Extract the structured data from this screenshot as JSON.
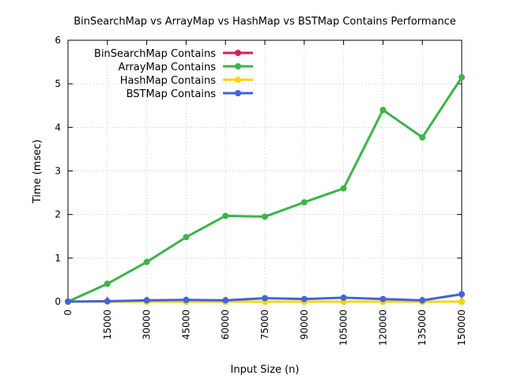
{
  "chart_data": {
    "type": "line",
    "title": "BinSearchMap vs ArrayMap vs HashMap vs BSTMap Contains Performance",
    "xlabel": "Input Size (n)",
    "ylabel": "Time (msec)",
    "x": [
      0,
      15000,
      30000,
      45000,
      60000,
      75000,
      90000,
      105000,
      120000,
      135000,
      150000
    ],
    "x_tick_labels": [
      "0",
      "15000",
      "30000",
      "45000",
      "60000",
      "75000",
      "90000",
      "105000",
      "120000",
      "135000",
      "150000"
    ],
    "y_ticks": [
      0,
      1,
      2,
      3,
      4,
      5,
      6
    ],
    "y_tick_labels": [
      "0",
      "1",
      "2",
      "3",
      "4",
      "5",
      "6"
    ],
    "xlim": [
      0,
      150000
    ],
    "ylim": [
      0,
      6
    ],
    "grid": true,
    "legend_position": "top-left",
    "series": [
      {
        "name": "BinSearchMap Contains",
        "color": "#dc1f4e",
        "values": [
          0,
          0,
          0,
          0,
          0,
          0,
          0,
          0,
          0,
          0,
          0
        ]
      },
      {
        "name": "ArrayMap Contains",
        "color": "#3cb44b",
        "values": [
          0.0,
          0.41,
          0.91,
          1.48,
          1.97,
          1.95,
          2.28,
          2.6,
          4.4,
          3.77,
          5.15
        ]
      },
      {
        "name": "HashMap Contains",
        "color": "#f5d60a",
        "values": [
          0,
          0,
          0,
          0,
          0,
          0,
          0,
          0,
          0,
          0,
          0
        ]
      },
      {
        "name": "BSTMap Contains",
        "color": "#4363d8",
        "values": [
          0.0,
          0.01,
          0.03,
          0.04,
          0.03,
          0.08,
          0.06,
          0.09,
          0.06,
          0.03,
          0.17
        ]
      }
    ]
  }
}
